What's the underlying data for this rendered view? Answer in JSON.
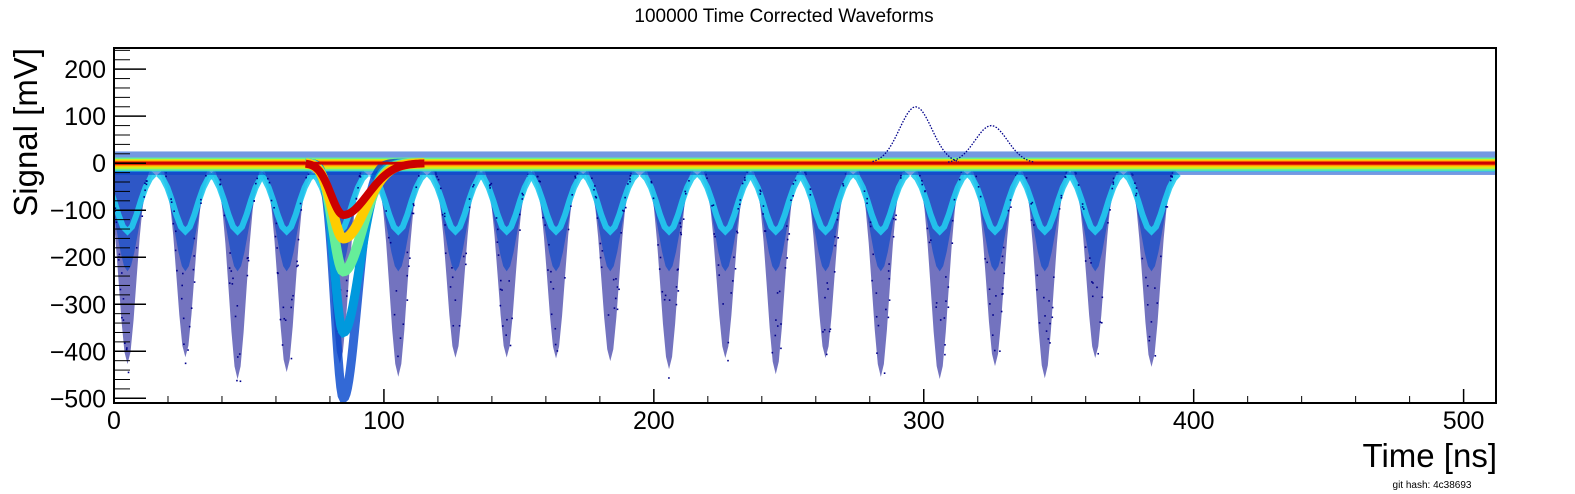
{
  "chart_data": {
    "type": "heatmap",
    "title": "100000 Time Corrected Waveforms",
    "xlabel": "Time [ns]",
    "ylabel": "Signal [mV]",
    "xlim": [
      0,
      512
    ],
    "ylim": [
      -510,
      245
    ],
    "x_ticks": [
      0,
      100,
      200,
      300,
      400,
      500
    ],
    "x_tick_labels": [
      "0",
      "100",
      "200",
      "300",
      "400",
      "500"
    ],
    "y_ticks": [
      200,
      100,
      0,
      -100,
      -200,
      -300,
      -400,
      -500
    ],
    "y_tick_labels": [
      "200",
      "100",
      "0",
      "−100",
      "−200",
      "−300",
      "−400",
      "−500"
    ],
    "grid": false,
    "colormap": [
      "#00008b",
      "#0044cc",
      "#0099dd",
      "#22ccee",
      "#66ee99",
      "#ccee22",
      "#ffcc00",
      "#ff6600",
      "#cc0000"
    ],
    "baseline_mV": 0,
    "main_pulse": {
      "peak_time_ns": 85,
      "peak_amplitude_mV": -500,
      "dense_core_minimum_mV": -110
    },
    "afterpulse_period_ns": 20,
    "afterpulse_count": 20,
    "afterpulse_minimum_mV": -500,
    "afterpulse_dense_band_minimum_mV": -130,
    "outlier_excursions": [
      {
        "time_ns": 297,
        "peak_mV": 120
      },
      {
        "time_ns": 325,
        "peak_mV": 80
      }
    ],
    "footnote": "git hash: 4c38693"
  }
}
